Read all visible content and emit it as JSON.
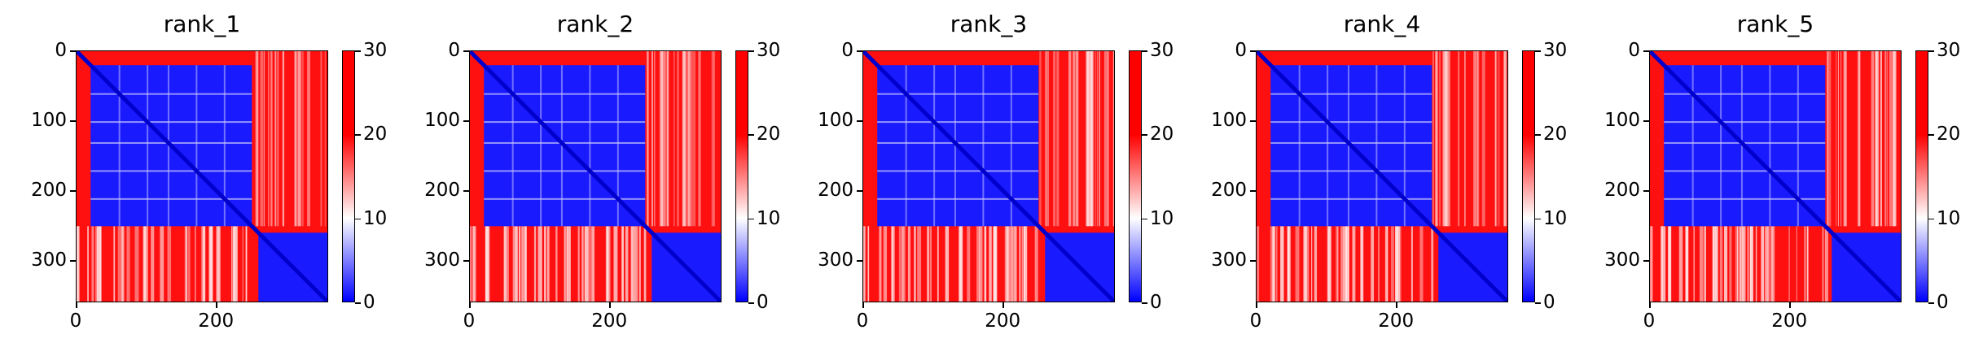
{
  "chart_data": [
    {
      "type": "heatmap",
      "title": "rank_1",
      "size": 360,
      "domain_split": 250,
      "xticks": [
        "0",
        "200"
      ],
      "xtick_values": [
        0,
        200
      ],
      "yticks": [
        "0",
        "100",
        "200",
        "300"
      ],
      "ytick_values": [
        0,
        100,
        200,
        300
      ],
      "colorbar": {
        "min": 0,
        "max": 30,
        "ticks": [
          "0",
          "10",
          "20",
          "30"
        ],
        "tick_values": [
          0,
          10,
          20,
          30
        ],
        "colors": [
          "#0000ff",
          "#ffffff",
          "#ff0000"
        ]
      },
      "description": "pairwise error matrix: low values within residues 0-250 block and 250-360 block, high values across blocks"
    },
    {
      "type": "heatmap",
      "title": "rank_2",
      "size": 360,
      "domain_split": 250,
      "xticks": [
        "0",
        "200"
      ],
      "xtick_values": [
        0,
        200
      ],
      "yticks": [
        "0",
        "100",
        "200",
        "300"
      ],
      "ytick_values": [
        0,
        100,
        200,
        300
      ],
      "colorbar": {
        "min": 0,
        "max": 30,
        "ticks": [
          "0",
          "10",
          "20",
          "30"
        ],
        "tick_values": [
          0,
          10,
          20,
          30
        ],
        "colors": [
          "#0000ff",
          "#ffffff",
          "#ff0000"
        ]
      },
      "description": "pairwise error matrix: low values within residues 0-250 block and 250-360 block, high values across blocks"
    },
    {
      "type": "heatmap",
      "title": "rank_3",
      "size": 360,
      "domain_split": 250,
      "xticks": [
        "0",
        "200"
      ],
      "xtick_values": [
        0,
        200
      ],
      "yticks": [
        "0",
        "100",
        "200",
        "300"
      ],
      "ytick_values": [
        0,
        100,
        200,
        300
      ],
      "colorbar": {
        "min": 0,
        "max": 30,
        "ticks": [
          "0",
          "10",
          "20",
          "30"
        ],
        "tick_values": [
          0,
          10,
          20,
          30
        ],
        "colors": [
          "#0000ff",
          "#ffffff",
          "#ff0000"
        ]
      },
      "description": "pairwise error matrix: low values within residues 0-250 block and 250-360 block, high values across blocks"
    },
    {
      "type": "heatmap",
      "title": "rank_4",
      "size": 360,
      "domain_split": 250,
      "xticks": [
        "0",
        "200"
      ],
      "xtick_values": [
        0,
        200
      ],
      "yticks": [
        "0",
        "100",
        "200",
        "300"
      ],
      "ytick_values": [
        0,
        100,
        200,
        300
      ],
      "colorbar": {
        "min": 0,
        "max": 30,
        "ticks": [
          "0",
          "10",
          "20",
          "30"
        ],
        "tick_values": [
          0,
          10,
          20,
          30
        ],
        "colors": [
          "#0000ff",
          "#ffffff",
          "#ff0000"
        ]
      },
      "description": "pairwise error matrix: low values within residues 0-250 block and 250-360 block, high values across blocks"
    },
    {
      "type": "heatmap",
      "title": "rank_5",
      "size": 360,
      "domain_split": 250,
      "xticks": [
        "0",
        "200"
      ],
      "xtick_values": [
        0,
        200
      ],
      "yticks": [
        "0",
        "100",
        "200",
        "300"
      ],
      "ytick_values": [
        0,
        100,
        200,
        300
      ],
      "colorbar": {
        "min": 0,
        "max": 30,
        "ticks": [
          "0",
          "10",
          "20",
          "30"
        ],
        "tick_values": [
          0,
          10,
          20,
          30
        ],
        "colors": [
          "#0000ff",
          "#ffffff",
          "#ff0000"
        ]
      },
      "description": "pairwise error matrix: low values within residues 0-250 block and 250-360 block, high values across blocks"
    }
  ]
}
